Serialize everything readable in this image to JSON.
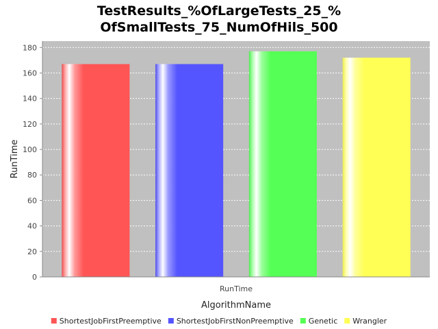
{
  "chart_data": {
    "type": "bar",
    "title_lines": [
      "TestResults_%OfLargeTests_25_%",
      "OfSmallTests_75_NumOfHils_500"
    ],
    "xlabel": "AlgorithmName",
    "ylabel": "RunTime",
    "categories": [
      "RunTime"
    ],
    "ylim": [
      0,
      185
    ],
    "yticks": [
      0,
      20,
      40,
      60,
      80,
      100,
      120,
      140,
      160,
      180
    ],
    "grid": true,
    "legend_position": "bottom",
    "series": [
      {
        "name": "ShortestJobFirstPreemptive",
        "values": [
          167
        ],
        "color": "#ff5555"
      },
      {
        "name": "ShortestJobFirstNonPreemptive",
        "values": [
          167
        ],
        "color": "#5555ff"
      },
      {
        "name": "Genetic",
        "values": [
          177
        ],
        "color": "#55ff55"
      },
      {
        "name": "Wrangler",
        "values": [
          172
        ],
        "color": "#ffff55"
      }
    ]
  }
}
